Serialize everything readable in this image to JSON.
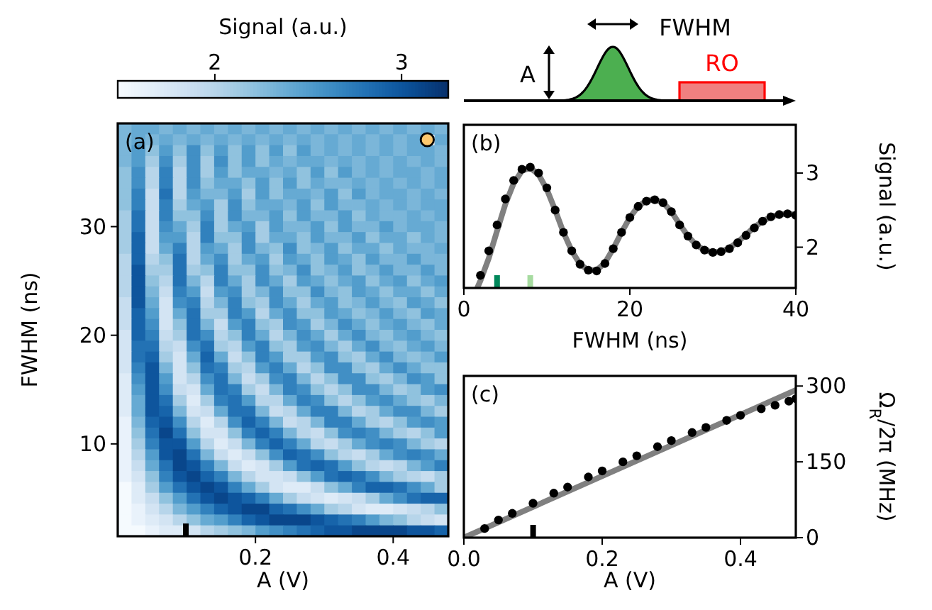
{
  "chart_data": [
    {
      "type": "heatmap",
      "xlabel": "A (V)",
      "ylabel": "FWHM (ns)",
      "clabel": "Signal (a.u.)",
      "annotations": [
        "(a)"
      ],
      "xlim": [
        0,
        0.48
      ],
      "ylim": [
        1.5,
        39.5
      ],
      "xticks": [
        0.2,
        0.4
      ],
      "yticks": [
        10,
        20,
        30
      ],
      "clim": [
        1.48,
        3.25
      ],
      "cticks": [
        2,
        3
      ],
      "x": [
        0.01,
        0.03,
        0.05,
        0.07,
        0.09,
        0.11,
        0.13,
        0.15,
        0.17,
        0.19,
        0.21,
        0.23,
        0.25,
        0.27,
        0.29,
        0.31,
        0.33,
        0.35,
        0.37,
        0.39,
        0.41,
        0.43,
        0.45,
        0.47
      ],
      "y": [
        39,
        38,
        37,
        36,
        35,
        34,
        33,
        32,
        31,
        30,
        29,
        28,
        27,
        26,
        25,
        24,
        23,
        22,
        21,
        20,
        19,
        18,
        17,
        16,
        15,
        14,
        13,
        12,
        11,
        10,
        9,
        8,
        7,
        6,
        5,
        4,
        3,
        2
      ],
      "cells": [
        [
          2.3,
          2.4,
          2.4,
          2.3,
          2.4,
          2.3,
          2.4,
          2.3,
          2.4,
          2.3,
          2.4,
          2.3,
          2.4,
          2.3,
          2.4,
          2.3,
          2.4,
          2.3,
          2.4,
          2.3,
          2.4,
          2.3,
          2.4,
          2.3
        ],
        [
          2.3,
          2.4,
          2.3,
          2.4,
          2.3,
          2.4,
          2.3,
          2.4,
          2.3,
          2.4,
          2.3,
          2.4,
          2.3,
          2.4,
          2.3,
          2.4,
          2.3,
          2.4,
          2.3,
          2.4,
          2.3,
          2.4,
          null,
          2.4
        ],
        [
          2.3,
          2.5,
          2.2,
          2.5,
          2.2,
          2.6,
          2.2,
          2.5,
          2.2,
          2.5,
          2.2,
          2.5,
          2.2,
          2.5,
          2.3,
          2.4,
          2.3,
          2.4,
          2.3,
          2.4,
          2.3,
          2.4,
          2.4,
          2.3
        ],
        [
          2.3,
          2.5,
          2.1,
          2.6,
          2.1,
          2.6,
          2.1,
          2.6,
          2.2,
          2.5,
          2.2,
          2.4,
          2.3,
          2.4,
          2.4,
          2.3,
          2.4,
          2.3,
          2.4,
          2.3,
          2.4,
          2.3,
          2.4,
          2.3
        ],
        [
          2.2,
          2.6,
          2.0,
          2.7,
          2.0,
          2.6,
          2.1,
          2.5,
          2.2,
          2.4,
          2.4,
          2.3,
          2.4,
          2.2,
          2.5,
          2.2,
          2.5,
          2.3,
          2.4,
          2.3,
          2.4,
          2.4,
          2.3,
          2.4
        ],
        [
          2.2,
          2.6,
          2.0,
          2.7,
          2.0,
          2.6,
          2.2,
          2.4,
          2.4,
          2.2,
          2.5,
          2.2,
          2.5,
          2.2,
          2.4,
          2.3,
          2.3,
          2.4,
          2.3,
          2.4,
          2.3,
          2.4,
          2.3,
          2.4
        ],
        [
          2.2,
          2.7,
          1.9,
          2.8,
          2.0,
          2.5,
          2.3,
          2.3,
          2.5,
          2.1,
          2.5,
          2.2,
          2.4,
          2.4,
          2.3,
          2.5,
          2.2,
          2.5,
          2.3,
          2.4,
          2.4,
          2.3,
          2.4,
          2.3
        ],
        [
          2.2,
          2.7,
          1.9,
          2.7,
          2.1,
          2.4,
          2.5,
          2.1,
          2.6,
          2.2,
          2.4,
          2.4,
          2.3,
          2.5,
          2.2,
          2.5,
          2.3,
          2.3,
          2.4,
          2.3,
          2.4,
          2.3,
          2.4,
          2.4
        ],
        [
          2.1,
          2.8,
          1.9,
          2.7,
          2.2,
          2.2,
          2.6,
          2.1,
          2.6,
          2.3,
          2.3,
          2.5,
          2.2,
          2.5,
          2.3,
          2.3,
          2.5,
          2.2,
          2.4,
          2.3,
          2.3,
          2.4,
          2.3,
          2.4
        ],
        [
          2.1,
          2.8,
          1.9,
          2.6,
          2.4,
          2.1,
          2.7,
          2.1,
          2.4,
          2.5,
          2.1,
          2.5,
          2.3,
          2.3,
          2.5,
          2.2,
          2.5,
          2.3,
          2.3,
          2.5,
          2.3,
          2.4,
          2.4,
          2.3
        ],
        [
          2.1,
          2.9,
          1.9,
          2.5,
          2.5,
          2.0,
          2.7,
          2.2,
          2.2,
          2.6,
          2.1,
          2.4,
          2.4,
          2.2,
          2.5,
          2.3,
          2.3,
          2.5,
          2.2,
          2.4,
          2.4,
          2.2,
          2.4,
          2.3
        ],
        [
          2.1,
          2.9,
          1.9,
          2.4,
          2.7,
          2.0,
          2.5,
          2.4,
          2.1,
          2.6,
          2.3,
          2.2,
          2.6,
          2.2,
          2.3,
          2.5,
          2.2,
          2.4,
          2.4,
          2.2,
          2.4,
          2.3,
          2.3,
          2.4
        ],
        [
          2.0,
          2.9,
          2.0,
          2.2,
          2.8,
          2.0,
          2.4,
          2.6,
          2.1,
          2.4,
          2.5,
          2.1,
          2.5,
          2.4,
          2.2,
          2.5,
          2.4,
          2.2,
          2.5,
          2.3,
          2.3,
          2.5,
          2.3,
          2.3
        ],
        [
          2.0,
          3.0,
          2.1,
          2.1,
          2.8,
          2.1,
          2.2,
          2.7,
          2.2,
          2.2,
          2.6,
          2.2,
          2.3,
          2.6,
          2.2,
          2.3,
          2.5,
          2.2,
          2.3,
          2.5,
          2.3,
          2.3,
          2.5,
          2.3
        ],
        [
          2.0,
          3.0,
          2.2,
          2.0,
          2.8,
          2.3,
          2.0,
          2.7,
          2.4,
          2.1,
          2.6,
          2.4,
          2.1,
          2.5,
          2.4,
          2.2,
          2.4,
          2.5,
          2.2,
          2.4,
          2.5,
          2.2,
          2.4,
          2.5
        ],
        [
          2.0,
          3.0,
          2.3,
          1.9,
          2.7,
          2.5,
          1.9,
          2.5,
          2.6,
          2.1,
          2.3,
          2.6,
          2.2,
          2.2,
          2.6,
          2.3,
          2.2,
          2.5,
          2.4,
          2.2,
          2.4,
          2.4,
          2.2,
          2.4
        ],
        [
          1.9,
          3.0,
          2.4,
          1.8,
          2.6,
          2.7,
          2.0,
          2.3,
          2.7,
          2.2,
          2.1,
          2.6,
          2.4,
          2.1,
          2.4,
          2.5,
          2.2,
          2.3,
          2.5,
          2.3,
          2.2,
          2.5,
          2.4,
          2.2
        ],
        [
          1.9,
          2.9,
          2.5,
          1.8,
          2.4,
          2.8,
          2.1,
          2.1,
          2.7,
          2.5,
          2.0,
          2.4,
          2.6,
          2.2,
          2.2,
          2.5,
          2.4,
          2.2,
          2.3,
          2.5,
          2.3,
          2.2,
          2.5,
          2.4
        ],
        [
          1.9,
          2.9,
          2.6,
          1.8,
          2.2,
          2.8,
          2.3,
          1.9,
          2.5,
          2.7,
          2.2,
          2.1,
          2.6,
          2.5,
          2.1,
          2.3,
          2.6,
          2.4,
          2.2,
          2.4,
          2.5,
          2.3,
          2.2,
          2.4
        ],
        [
          1.8,
          2.9,
          2.7,
          1.9,
          2.1,
          2.8,
          2.6,
          2.0,
          2.2,
          2.7,
          2.4,
          2.0,
          2.3,
          2.6,
          2.4,
          2.1,
          2.4,
          2.6,
          2.3,
          2.2,
          2.4,
          2.5,
          2.3,
          2.2
        ],
        [
          1.8,
          2.8,
          2.8,
          2.0,
          1.9,
          2.6,
          2.8,
          2.1,
          2.0,
          2.5,
          2.7,
          2.2,
          2.1,
          2.5,
          2.6,
          2.3,
          2.1,
          2.4,
          2.6,
          2.3,
          2.2,
          2.4,
          2.5,
          2.3
        ],
        [
          1.8,
          2.8,
          2.9,
          2.1,
          1.8,
          2.4,
          2.9,
          2.4,
          1.9,
          2.2,
          2.7,
          2.5,
          2.1,
          2.1,
          2.5,
          2.6,
          2.2,
          2.1,
          2.4,
          2.6,
          2.3,
          2.2,
          2.3,
          2.5
        ],
        [
          1.8,
          2.7,
          3.0,
          2.3,
          1.8,
          2.2,
          2.8,
          2.7,
          2.1,
          2.0,
          2.5,
          2.7,
          2.4,
          2.0,
          2.2,
          2.6,
          2.6,
          2.2,
          2.1,
          2.4,
          2.6,
          2.4,
          2.2,
          2.2
        ],
        [
          1.7,
          2.6,
          3.0,
          2.5,
          1.8,
          2.0,
          2.6,
          2.8,
          2.3,
          1.9,
          2.1,
          2.6,
          2.7,
          2.3,
          2.0,
          2.2,
          2.6,
          2.6,
          2.2,
          2.1,
          2.3,
          2.6,
          2.5,
          2.2
        ],
        [
          1.7,
          2.5,
          3.0,
          2.6,
          1.9,
          1.8,
          2.4,
          2.8,
          2.7,
          2.1,
          1.9,
          2.3,
          2.7,
          2.6,
          2.2,
          2.0,
          2.2,
          2.6,
          2.6,
          2.3,
          2.1,
          2.2,
          2.5,
          2.6
        ],
        [
          1.7,
          2.4,
          3.0,
          2.8,
          2.1,
          1.7,
          2.1,
          2.7,
          2.8,
          2.5,
          2.0,
          2.0,
          2.4,
          2.7,
          2.6,
          2.2,
          2.0,
          2.2,
          2.5,
          2.6,
          2.4,
          2.2,
          2.1,
          2.3
        ],
        [
          1.7,
          2.4,
          3.0,
          2.9,
          2.3,
          1.8,
          1.9,
          2.4,
          2.8,
          2.8,
          2.3,
          1.9,
          2.0,
          2.4,
          2.7,
          2.7,
          2.3,
          2.0,
          2.1,
          2.4,
          2.6,
          2.6,
          2.3,
          2.1
        ],
        [
          1.6,
          2.3,
          2.9,
          3.0,
          2.6,
          2.0,
          1.7,
          2.0,
          2.6,
          2.9,
          2.7,
          2.3,
          1.9,
          2.0,
          2.3,
          2.7,
          2.7,
          2.4,
          2.1,
          2.0,
          2.2,
          2.5,
          2.6,
          2.5
        ],
        [
          1.6,
          2.2,
          2.8,
          3.1,
          2.8,
          2.2,
          1.8,
          1.8,
          2.2,
          2.7,
          2.9,
          2.7,
          2.3,
          2.0,
          1.9,
          2.2,
          2.6,
          2.7,
          2.6,
          2.3,
          2.1,
          2.0,
          2.2,
          2.5
        ],
        [
          1.6,
          2.1,
          2.7,
          3.0,
          3.0,
          2.5,
          2.0,
          1.7,
          1.9,
          2.3,
          2.7,
          2.9,
          2.7,
          2.4,
          2.0,
          1.9,
          2.1,
          2.4,
          2.6,
          2.7,
          2.6,
          2.3,
          2.1,
          2.0
        ],
        [
          1.6,
          2.0,
          2.5,
          3.0,
          3.1,
          2.8,
          2.3,
          1.9,
          1.7,
          1.9,
          2.2,
          2.6,
          2.9,
          2.8,
          2.6,
          2.2,
          2.0,
          1.9,
          2.1,
          2.4,
          2.6,
          2.7,
          2.6,
          2.4
        ],
        [
          1.6,
          1.9,
          2.4,
          2.8,
          3.1,
          3.0,
          2.7,
          2.3,
          1.9,
          1.7,
          1.8,
          2.1,
          2.5,
          2.8,
          2.9,
          2.8,
          2.5,
          2.2,
          2.0,
          1.9,
          2.0,
          2.3,
          2.5,
          2.7
        ],
        [
          1.6,
          1.8,
          2.2,
          2.7,
          3.0,
          3.1,
          2.9,
          2.7,
          2.3,
          2.0,
          1.8,
          1.8,
          1.9,
          2.2,
          2.5,
          2.8,
          2.9,
          2.8,
          2.6,
          2.3,
          2.1,
          2.0,
          1.9,
          2.1
        ],
        [
          1.5,
          1.7,
          2.1,
          2.5,
          2.8,
          3.0,
          3.1,
          3.0,
          2.7,
          2.4,
          2.1,
          1.8,
          1.7,
          1.7,
          1.9,
          2.2,
          2.4,
          2.7,
          2.9,
          2.9,
          2.8,
          2.6,
          2.4,
          2.1
        ],
        [
          1.5,
          1.7,
          1.9,
          2.2,
          2.5,
          2.8,
          3.0,
          3.1,
          3.0,
          2.9,
          2.7,
          2.4,
          2.1,
          1.9,
          1.8,
          1.7,
          1.8,
          1.9,
          2.1,
          2.4,
          2.6,
          2.8,
          2.9,
          2.9
        ],
        [
          1.5,
          1.6,
          1.8,
          2.0,
          2.3,
          2.5,
          2.7,
          2.9,
          3.0,
          3.1,
          3.1,
          2.9,
          2.8,
          2.6,
          2.4,
          2.1,
          2.0,
          1.8,
          1.7,
          1.7,
          1.8,
          1.9,
          2.0,
          2.2
        ],
        [
          1.5,
          1.6,
          1.7,
          1.8,
          2.0,
          2.2,
          2.4,
          2.5,
          2.7,
          2.9,
          3.0,
          3.1,
          3.1,
          3.1,
          3.0,
          2.9,
          2.8,
          2.7,
          2.5,
          2.3,
          2.2,
          2.0,
          1.9,
          1.8
        ],
        [
          1.5,
          1.5,
          1.6,
          1.7,
          1.7,
          1.8,
          2.0,
          2.1,
          2.2,
          2.3,
          2.5,
          2.6,
          2.7,
          2.8,
          2.9,
          3.0,
          3.0,
          3.1,
          3.1,
          3.1,
          3.1,
          3.0,
          3.0,
          2.9
        ]
      ]
    },
    {
      "type": "scatter",
      "xlabel": "FWHM (ns)",
      "ylabel": "Signal (a.u.)",
      "annotations": [
        "(b)"
      ],
      "xlim": [
        0,
        40
      ],
      "ylim": [
        1.45,
        3.65
      ],
      "xticks": [
        0,
        20,
        40
      ],
      "yticks": [
        2,
        3
      ],
      "series": [
        {
          "type": "scatter",
          "color": "#000000",
          "marker": "circle",
          "x": [
            2,
            3,
            4,
            5,
            6,
            7,
            8,
            9,
            10,
            11,
            12,
            13,
            14,
            15,
            16,
            17,
            18,
            19,
            20,
            21,
            22,
            23,
            24,
            25,
            26,
            27,
            28,
            29,
            30,
            31,
            32,
            33,
            34,
            35,
            36,
            37,
            38,
            39,
            40
          ],
          "values": [
            1.62,
            1.95,
            2.3,
            2.65,
            2.9,
            3.05,
            3.08,
            3.0,
            2.8,
            2.5,
            2.2,
            1.95,
            1.77,
            1.69,
            1.68,
            1.78,
            1.98,
            2.2,
            2.4,
            2.55,
            2.62,
            2.64,
            2.6,
            2.48,
            2.3,
            2.15,
            2.03,
            1.96,
            1.93,
            1.94,
            1.98,
            2.06,
            2.16,
            2.26,
            2.35,
            2.41,
            2.44,
            2.45,
            2.43
          ]
        },
        {
          "type": "line",
          "color": "#808080",
          "x": [
            1.65,
            2,
            3,
            4,
            5,
            6,
            7,
            8,
            9,
            10,
            11,
            12,
            13,
            14,
            15,
            16,
            17,
            18,
            19,
            20,
            21,
            22,
            23,
            24,
            25,
            26,
            27,
            28,
            29,
            30,
            31,
            32,
            33,
            34,
            35,
            36,
            37,
            38,
            39,
            40
          ],
          "values": [
            1.46,
            1.55,
            1.85,
            2.22,
            2.58,
            2.86,
            3.03,
            3.07,
            2.98,
            2.78,
            2.5,
            2.2,
            1.95,
            1.77,
            1.69,
            1.69,
            1.79,
            1.98,
            2.2,
            2.4,
            2.55,
            2.63,
            2.64,
            2.6,
            2.48,
            2.31,
            2.15,
            2.03,
            1.96,
            1.93,
            1.94,
            1.99,
            2.07,
            2.17,
            2.27,
            2.35,
            2.41,
            2.44,
            2.45,
            2.44
          ]
        }
      ]
    },
    {
      "type": "scatter",
      "xlabel": "A (V)",
      "ylabel": "Ω$_{R}$/2π (MHz)",
      "annotations": [
        "(c)"
      ],
      "xlim": [
        0,
        0.48
      ],
      "ylim": [
        0,
        320
      ],
      "xticks": [
        {
          "value": 0,
          "label": "0.0"
        },
        0.2,
        0.4
      ],
      "yticks": [
        0,
        150,
        300
      ],
      "series": [
        {
          "type": "scatter",
          "color": "#000000",
          "marker": "circle",
          "x": [
            0.03,
            0.05,
            0.07,
            0.1,
            0.13,
            0.15,
            0.18,
            0.2,
            0.23,
            0.25,
            0.28,
            0.3,
            0.33,
            0.35,
            0.38,
            0.4,
            0.43,
            0.45,
            0.47,
            0.48
          ],
          "values": [
            18,
            35,
            48,
            68,
            88,
            100,
            120,
            132,
            150,
            162,
            180,
            192,
            208,
            218,
            232,
            242,
            255,
            262,
            270,
            275
          ]
        },
        {
          "type": "line",
          "color": "#808080",
          "x": [
            0,
            0.48
          ],
          "values": [
            0,
            292
          ]
        }
      ]
    },
    {
      "type": "other",
      "annotations": [
        "FWHM",
        "A",
        "RO"
      ]
    }
  ]
}
